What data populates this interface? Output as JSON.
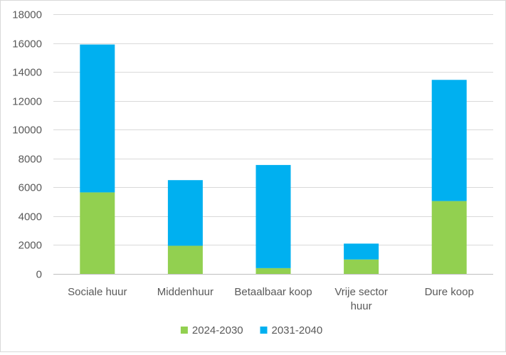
{
  "chart_data": {
    "type": "bar",
    "stacked": true,
    "title": "",
    "xlabel": "",
    "ylabel": "",
    "categories": [
      [
        "Sociale huur"
      ],
      [
        "Middenhuur"
      ],
      [
        "Betaalbaar koop"
      ],
      [
        "Vrije sector",
        "huur"
      ],
      [
        "Dure koop"
      ]
    ],
    "series": [
      {
        "name": "2024-2030",
        "color": "#92d050",
        "values": [
          5650,
          1950,
          400,
          1000,
          5050
        ]
      },
      {
        "name": "2031-2040",
        "color": "#00b0f0",
        "values": [
          10250,
          4550,
          7150,
          1100,
          8400
        ]
      }
    ],
    "ylim": [
      0,
      18000
    ],
    "yticks": [
      0,
      2000,
      4000,
      6000,
      8000,
      10000,
      12000,
      14000,
      16000,
      18000
    ],
    "grid": true,
    "legend": "bottom"
  }
}
